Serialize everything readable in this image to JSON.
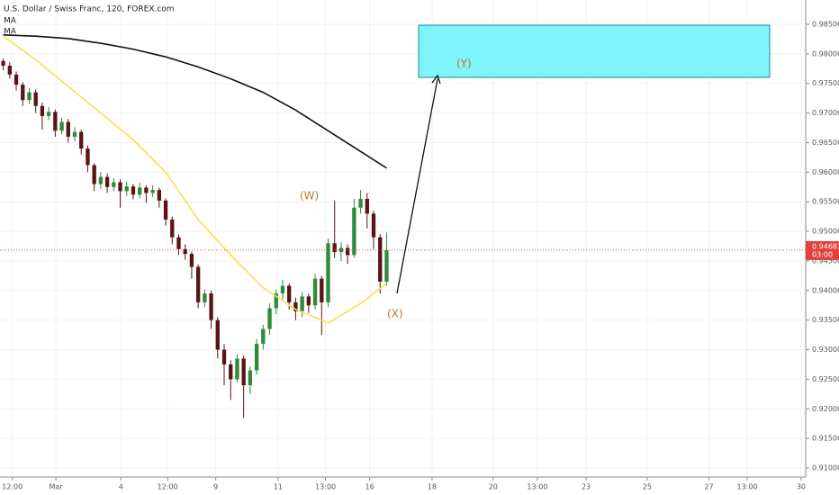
{
  "chart_data": {
    "type": "candlestick",
    "title": "U.S. Dollar / Swiss Franc, 120, FOREX.com",
    "up_color": "#2e8b3a",
    "down_color": "#5a1414",
    "open": [
      0.9788,
      0.978,
      0.9765,
      0.9748,
      0.9722,
      0.9735,
      0.9712,
      0.9695,
      0.9702,
      0.967,
      0.9685,
      0.966,
      0.9668,
      0.964,
      0.9612,
      0.958,
      0.9592,
      0.9575,
      0.9583,
      0.9568,
      0.9576,
      0.9562,
      0.9574,
      0.9565,
      0.957,
      0.9552,
      0.952,
      0.949,
      0.947,
      0.9462,
      0.944,
      0.938,
      0.9395,
      0.935,
      0.93,
      0.9275,
      0.925,
      0.9285,
      0.924,
      0.9265,
      0.931,
      0.9335,
      0.937,
      0.9395,
      0.9408,
      0.938,
      0.9365,
      0.939,
      0.9375,
      0.942,
      0.938,
      0.948,
      0.9465,
      0.9472,
      0.946,
      0.954,
      0.9555,
      0.953,
      0.949,
      0.9415
    ],
    "high": [
      0.9792,
      0.9786,
      0.977,
      0.9752,
      0.9742,
      0.974,
      0.9718,
      0.971,
      0.9706,
      0.9692,
      0.969,
      0.9676,
      0.9672,
      0.9645,
      0.9615,
      0.96,
      0.9598,
      0.959,
      0.9588,
      0.9584,
      0.958,
      0.9582,
      0.9578,
      0.9578,
      0.9574,
      0.9556,
      0.9525,
      0.9495,
      0.9478,
      0.9466,
      0.9444,
      0.9402,
      0.94,
      0.9355,
      0.931,
      0.9282,
      0.9292,
      0.929,
      0.9272,
      0.9318,
      0.9342,
      0.9378,
      0.9402,
      0.9418,
      0.9412,
      0.9388,
      0.9398,
      0.9395,
      0.9428,
      0.9425,
      0.9488,
      0.9552,
      0.9482,
      0.9478,
      0.9555,
      0.957,
      0.9565,
      0.9535,
      0.9495,
      0.9498
    ],
    "low": [
      0.9772,
      0.9758,
      0.9738,
      0.9712,
      0.9715,
      0.97,
      0.9672,
      0.9688,
      0.966,
      0.9664,
      0.965,
      0.9652,
      0.963,
      0.96,
      0.9568,
      0.9572,
      0.9565,
      0.9568,
      0.954,
      0.956,
      0.9554,
      0.9556,
      0.9548,
      0.9558,
      0.954,
      0.951,
      0.9478,
      0.946,
      0.9452,
      0.942,
      0.937,
      0.9372,
      0.9335,
      0.9285,
      0.924,
      0.9215,
      0.9245,
      0.9185,
      0.9225,
      0.9258,
      0.93,
      0.9325,
      0.936,
      0.9385,
      0.9368,
      0.935,
      0.9355,
      0.9362,
      0.9368,
      0.9325,
      0.9372,
      0.9455,
      0.945,
      0.9445,
      0.9455,
      0.953,
      0.9505,
      0.947,
      0.9395,
      0.9408
    ],
    "close": [
      0.978,
      0.9765,
      0.9748,
      0.9722,
      0.9735,
      0.9712,
      0.9695,
      0.9702,
      0.967,
      0.9685,
      0.966,
      0.9668,
      0.964,
      0.9612,
      0.958,
      0.9592,
      0.9575,
      0.9583,
      0.9568,
      0.9576,
      0.9562,
      0.9574,
      0.9565,
      0.957,
      0.9552,
      0.952,
      0.949,
      0.947,
      0.9462,
      0.944,
      0.938,
      0.9395,
      0.935,
      0.93,
      0.9275,
      0.925,
      0.9285,
      0.924,
      0.9265,
      0.931,
      0.9335,
      0.937,
      0.9395,
      0.9408,
      0.938,
      0.9365,
      0.939,
      0.9375,
      0.942,
      0.938,
      0.948,
      0.9465,
      0.9472,
      0.946,
      0.954,
      0.9555,
      0.953,
      0.949,
      0.9415,
      0.9468
    ],
    "lines": [
      {
        "name": "MA",
        "color": "#111111",
        "x": [
          0,
          5,
          10,
          15,
          20,
          25,
          30,
          35,
          40,
          45,
          50,
          55,
          59
        ],
        "values": [
          0.9832,
          0.983,
          0.9826,
          0.9818,
          0.9808,
          0.9795,
          0.9778,
          0.9758,
          0.9735,
          0.9705,
          0.967,
          0.9635,
          0.9607
        ]
      },
      {
        "name": "MA",
        "color": "#f5e050",
        "x": [
          0,
          5,
          10,
          15,
          20,
          25,
          30,
          35,
          40,
          45,
          50,
          55,
          59
        ],
        "values": [
          0.983,
          0.979,
          0.9745,
          0.97,
          0.9655,
          0.96,
          0.952,
          0.946,
          0.9405,
          0.9368,
          0.9345,
          0.9378,
          0.9412
        ]
      }
    ],
    "last_price": 0.94683,
    "countdown": "03:00",
    "annotations": [
      "(W)",
      "(X)",
      "(Y)"
    ],
    "xlim": [
      -0.5,
      123.5
    ],
    "xticks": [
      {
        "value": 1.4,
        "label": "12:00"
      },
      {
        "value": 8.1,
        "label": "Mar"
      },
      {
        "value": 18.1,
        "label": "4"
      },
      {
        "value": 25.3,
        "label": "12:00"
      },
      {
        "value": 32.7,
        "label": "9"
      },
      {
        "value": 42.3,
        "label": "11"
      },
      {
        "value": 49.6,
        "label": "13:00"
      },
      {
        "value": 56.4,
        "label": "16"
      },
      {
        "value": 66,
        "label": "18"
      },
      {
        "value": 75.4,
        "label": "20"
      },
      {
        "value": 82.2,
        "label": "13:00"
      },
      {
        "value": 89.7,
        "label": "23"
      },
      {
        "value": 99.1,
        "label": "25"
      },
      {
        "value": 108.6,
        "label": "27"
      },
      {
        "value": 114.5,
        "label": "13:00"
      },
      {
        "value": 122.8,
        "label": "30"
      }
    ],
    "ylim": [
      0.90848,
      0.98911
    ],
    "yticks": [
      {
        "value": 0.91,
        "label": "0.91000"
      },
      {
        "value": 0.915,
        "label": "0.91500"
      },
      {
        "value": 0.92,
        "label": "0.92000"
      },
      {
        "value": 0.925,
        "label": "0.92500"
      },
      {
        "value": 0.93,
        "label": "0.93000"
      },
      {
        "value": 0.935,
        "label": "0.93500"
      },
      {
        "value": 0.94,
        "label": "0.94000"
      },
      {
        "value": 0.945,
        "label": "0.94500"
      },
      {
        "value": 0.95,
        "label": "0.95000"
      },
      {
        "value": 0.955,
        "label": "0.95500"
      },
      {
        "value": 0.96,
        "label": "0.96000"
      },
      {
        "value": 0.965,
        "label": "0.96500"
      },
      {
        "value": 0.97,
        "label": "0.97000"
      },
      {
        "value": 0.975,
        "label": "0.97500"
      },
      {
        "value": 0.98,
        "label": "0.98000"
      },
      {
        "value": 0.985,
        "label": "0.98500"
      }
    ]
  }
}
